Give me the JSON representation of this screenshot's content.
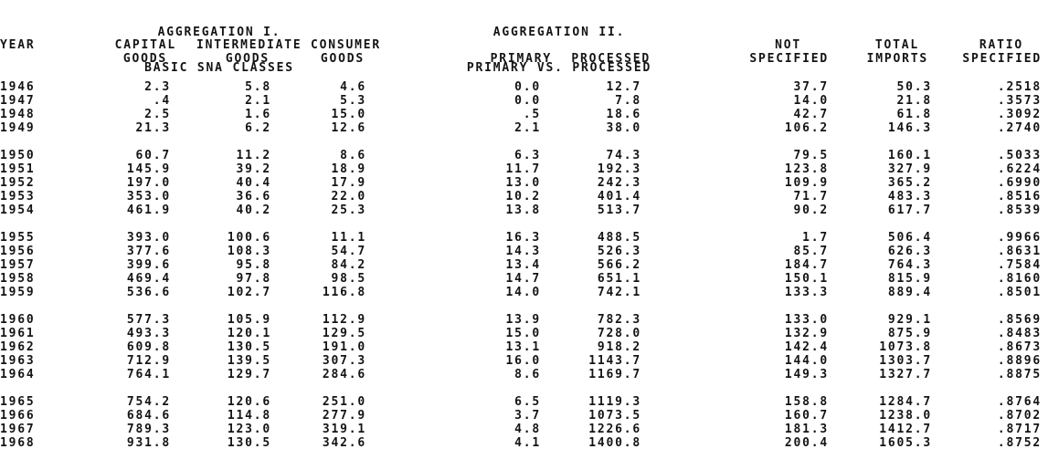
{
  "page": {
    "background": "#ffffff",
    "ink": "#141414"
  },
  "aggregation_titles": [
    {
      "line1": "AGGREGATION I.",
      "line2": "BASIC SNA CLASSES"
    },
    {
      "line1": "AGGREGATION II.",
      "line2": "PRIMARY VS. PROCESSED"
    }
  ],
  "table": {
    "column_ids": [
      "year",
      "capital-goods",
      "intermediate-goods",
      "consumer-goods",
      "primary",
      "processed",
      "not-specified",
      "total-imports",
      "ratio-specified"
    ],
    "header_row1": [
      "YEAR",
      "CAPITAL",
      "INTERMEDIATE",
      "CONSUMER",
      "",
      "",
      "NOT",
      "TOTAL",
      "RATIO"
    ],
    "header_row2": [
      "",
      "GOODS",
      "GOODS",
      "GOODS",
      "PRIMARY",
      "PROCESSED",
      "SPECIFIED",
      "IMPORTS",
      "SPECIFIED"
    ],
    "row_groups": [
      [
        [
          "1946",
          "2.3",
          "5.8",
          "4.6",
          "0.0",
          "12.7",
          "37.7",
          "50.3",
          ".2518"
        ],
        [
          "1947",
          ".4",
          "2.1",
          "5.3",
          "0.0",
          "7.8",
          "14.0",
          "21.8",
          ".3573"
        ],
        [
          "1948",
          "2.5",
          "1.6",
          "15.0",
          ".5",
          "18.6",
          "42.7",
          "61.8",
          ".3092"
        ],
        [
          "1949",
          "21.3",
          "6.2",
          "12.6",
          "2.1",
          "38.0",
          "106.2",
          "146.3",
          ".2740"
        ]
      ],
      [
        [
          "1950",
          "60.7",
          "11.2",
          "8.6",
          "6.3",
          "74.3",
          "79.5",
          "160.1",
          ".5033"
        ],
        [
          "1951",
          "145.9",
          "39.2",
          "18.9",
          "11.7",
          "192.3",
          "123.8",
          "327.9",
          ".6224"
        ],
        [
          "1952",
          "197.0",
          "40.4",
          "17.9",
          "13.0",
          "242.3",
          "109.9",
          "365.2",
          ".6990"
        ],
        [
          "1953",
          "353.0",
          "36.6",
          "22.0",
          "10.2",
          "401.4",
          "71.7",
          "483.3",
          ".8516"
        ],
        [
          "1954",
          "461.9",
          "40.2",
          "25.3",
          "13.8",
          "513.7",
          "90.2",
          "617.7",
          ".8539"
        ]
      ],
      [
        [
          "1955",
          "393.0",
          "100.6",
          "11.1",
          "16.3",
          "488.5",
          "1.7",
          "506.4",
          ".9966"
        ],
        [
          "1956",
          "377.6",
          "108.3",
          "54.7",
          "14.3",
          "526.3",
          "85.7",
          "626.3",
          ".8631"
        ],
        [
          "1957",
          "399.6",
          "95.8",
          "84.2",
          "13.4",
          "566.2",
          "184.7",
          "764.3",
          ".7584"
        ],
        [
          "1958",
          "469.4",
          "97.8",
          "98.5",
          "14.7",
          "651.1",
          "150.1",
          "815.9",
          ".8160"
        ],
        [
          "1959",
          "536.6",
          "102.7",
          "116.8",
          "14.0",
          "742.1",
          "133.3",
          "889.4",
          ".8501"
        ]
      ],
      [
        [
          "1960",
          "577.3",
          "105.9",
          "112.9",
          "13.9",
          "782.3",
          "133.0",
          "929.1",
          ".8569"
        ],
        [
          "1961",
          "493.3",
          "120.1",
          "129.5",
          "15.0",
          "728.0",
          "132.9",
          "875.9",
          ".8483"
        ],
        [
          "1962",
          "609.8",
          "130.5",
          "191.0",
          "13.1",
          "918.2",
          "142.4",
          "1073.8",
          ".8673"
        ],
        [
          "1963",
          "712.9",
          "139.5",
          "307.3",
          "16.0",
          "1143.7",
          "144.0",
          "1303.7",
          ".8896"
        ],
        [
          "1964",
          "764.1",
          "129.7",
          "284.6",
          "8.6",
          "1169.7",
          "149.3",
          "1327.7",
          ".8875"
        ]
      ],
      [
        [
          "1965",
          "754.2",
          "120.6",
          "251.0",
          "6.5",
          "1119.3",
          "158.8",
          "1284.7",
          ".8764"
        ],
        [
          "1966",
          "684.6",
          "114.8",
          "277.9",
          "3.7",
          "1073.5",
          "160.7",
          "1238.0",
          ".8702"
        ],
        [
          "1967",
          "789.3",
          "123.0",
          "319.1",
          "4.8",
          "1226.6",
          "181.3",
          "1412.7",
          ".8717"
        ],
        [
          "1968",
          "931.8",
          "130.5",
          "342.6",
          "4.1",
          "1400.8",
          "200.4",
          "1605.3",
          ".8752"
        ]
      ]
    ]
  }
}
